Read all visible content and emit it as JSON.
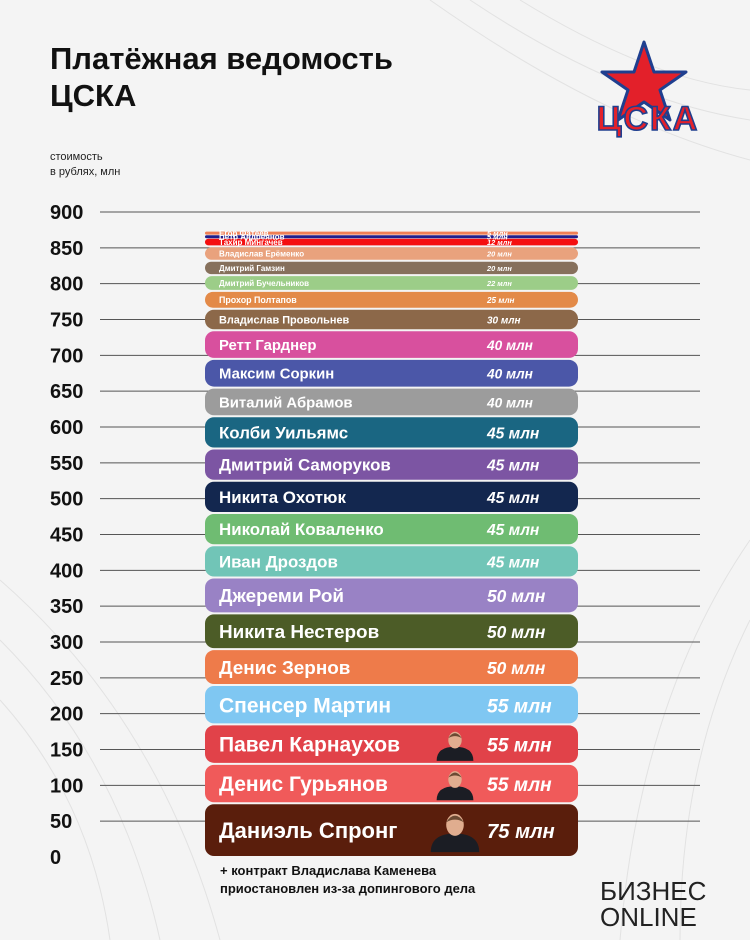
{
  "title": {
    "line1": "Платёжная ведомость",
    "line2": "ЦСКА"
  },
  "logo": {
    "letters": "ЦСКА",
    "icon": "red-star-icon"
  },
  "axis_caption": {
    "line1": "стоимость",
    "line2": "в рублях, млн"
  },
  "footnote": {
    "line1": "+ контракт Владислава Каменева",
    "line2": "приостановлен из-за допингового дела"
  },
  "brand": {
    "line1": "БИЗНЕС",
    "line2": "ONLINE"
  },
  "colors": {
    "gridline": "#555555",
    "background": "#f4f4f4",
    "logo_red": "#e3202a",
    "logo_blue": "#1f3f8f"
  },
  "chart_data": {
    "type": "bar",
    "orientation": "stacked-horizontal",
    "ylabel": "стоимость в рублях, млн",
    "ylim": [
      0,
      900
    ],
    "yticks": [
      0,
      50,
      100,
      150,
      200,
      250,
      300,
      350,
      400,
      450,
      500,
      550,
      600,
      650,
      700,
      750,
      800,
      850,
      900
    ],
    "grid": true,
    "unit_suffix": "млн",
    "segments": [
      {
        "name": "Даниэль Спронг",
        "value": 75,
        "label": "75 млн",
        "color": "#5a1e0c",
        "photo": true
      },
      {
        "name": "Денис Гурьянов",
        "value": 55,
        "label": "55 млн",
        "color": "#f05a5a",
        "photo": true
      },
      {
        "name": "Павел Карнаухов",
        "value": 55,
        "label": "55 млн",
        "color": "#e14249",
        "photo": true
      },
      {
        "name": "Спенсер Мартин",
        "value": 55,
        "label": "55 млн",
        "color": "#7fc7f2",
        "photo": false
      },
      {
        "name": "Денис Зернов",
        "value": 50,
        "label": "50 млн",
        "color": "#ee7b4a",
        "photo": false
      },
      {
        "name": "Никита Нестеров",
        "value": 50,
        "label": "50 млн",
        "color": "#4c5c27",
        "photo": false
      },
      {
        "name": "Джереми Рой",
        "value": 50,
        "label": "50 млн",
        "color": "#9982c5",
        "photo": false
      },
      {
        "name": "Иван Дроздов",
        "value": 45,
        "label": "45 млн",
        "color": "#71c5b7",
        "photo": false
      },
      {
        "name": "Николай Коваленко",
        "value": 45,
        "label": "45 млн",
        "color": "#6fbc72",
        "photo": false
      },
      {
        "name": "Никита Охотюк",
        "value": 45,
        "label": "45 млн",
        "color": "#13274f",
        "photo": false
      },
      {
        "name": "Дмитрий Саморуков",
        "value": 45,
        "label": "45 млн",
        "color": "#7c55a3",
        "photo": false
      },
      {
        "name": "Колби Уильямс",
        "value": 45,
        "label": "45 млн",
        "color": "#1a6682",
        "photo": false
      },
      {
        "name": "Виталий Абрамов",
        "value": 40,
        "label": "40 млн",
        "color": "#9c9c9c",
        "photo": false
      },
      {
        "name": "Максим Соркин",
        "value": 40,
        "label": "40 млн",
        "color": "#4b57a8",
        "photo": false
      },
      {
        "name": "Ретт Гарднер",
        "value": 40,
        "label": "40 млн",
        "color": "#d8509e",
        "photo": false
      },
      {
        "name": "Владислав Провольнев",
        "value": 30,
        "label": "30 млн",
        "color": "#8c6849",
        "photo": false
      },
      {
        "name": "Прохор Полтапов",
        "value": 25,
        "label": "25 млн",
        "color": "#e38a48",
        "photo": false
      },
      {
        "name": "Дмитрий Бучельников",
        "value": 22,
        "label": "22 млн",
        "color": "#9ccd88",
        "photo": false
      },
      {
        "name": "Дмитрий Гамзин",
        "value": 20,
        "label": "20 млн",
        "color": "#86705c",
        "photo": false
      },
      {
        "name": "Владислав Ерёменко",
        "value": 20,
        "label": "20 млн",
        "color": "#e9a27d",
        "photo": false
      },
      {
        "name": "Тахир Мингачёв",
        "value": 12,
        "label": "12 млн",
        "color": "#f40f10",
        "photo": false
      },
      {
        "name": "Пётр Андреянов",
        "value": 5,
        "label": "5 млн",
        "color": "#1f1f8c",
        "photo": false
      },
      {
        "name": "Егор Фатеев",
        "value": 5,
        "label": "5 млн",
        "color": "#ef7f55",
        "photo": false
      }
    ]
  }
}
